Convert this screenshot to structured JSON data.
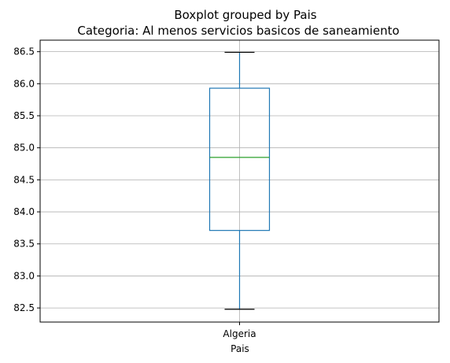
{
  "chart_data": {
    "type": "boxplot",
    "suptitle": "Boxplot grouped by Pais",
    "title": "Categoria: Al menos servicios basicos de saneamiento",
    "xlabel": "Pais",
    "ylabel": "",
    "categories": [
      "Algeria"
    ],
    "boxes": [
      {
        "category": "Algeria",
        "whisker_low": 82.48,
        "q1": 83.71,
        "median": 84.85,
        "q3": 85.93,
        "whisker_high": 86.49
      }
    ],
    "ylim": [
      82.28,
      86.68
    ],
    "yticks": [
      82.5,
      83.0,
      83.5,
      84.0,
      84.5,
      85.0,
      85.5,
      86.0,
      86.5
    ],
    "ytick_labels": [
      "82.5",
      "83.0",
      "83.5",
      "84.0",
      "84.5",
      "85.0",
      "85.5",
      "86.0",
      "86.5"
    ],
    "grid": true,
    "colors": {
      "box": "#1f77b4",
      "median": "#2ca02c",
      "whisker": "#1f77b4",
      "cap": "#000000",
      "grid": "#b0b0b0"
    }
  }
}
